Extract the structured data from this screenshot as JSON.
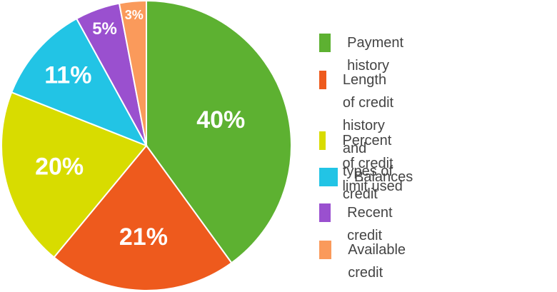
{
  "chart_data": {
    "type": "pie",
    "categories": [
      "Payment history",
      "Length of credit history\nand types of credit",
      "Percent of credit limit used",
      "Balances",
      "Recent credit",
      "Available credit"
    ],
    "values": [
      40,
      21,
      20,
      11,
      5,
      3
    ],
    "value_labels": [
      "40%",
      "21%",
      "20%",
      "11%",
      "5%",
      "3%"
    ],
    "colors": [
      "#5db131",
      "#ee5a1d",
      "#d8dc00",
      "#22c4e5",
      "#9a50cf",
      "#fa9a5b"
    ]
  }
}
